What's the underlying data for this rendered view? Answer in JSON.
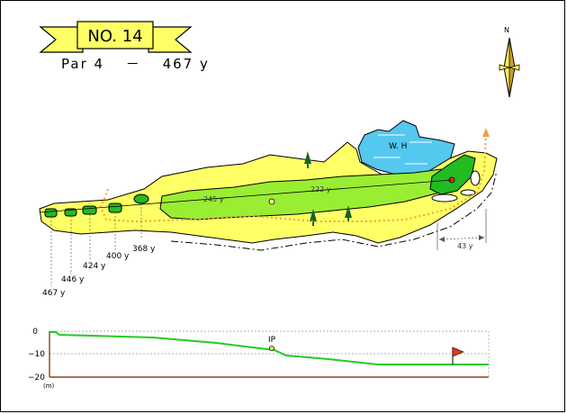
{
  "hole": {
    "label": "NO. 14",
    "par_line": "Par 4 　－　 467 y"
  },
  "compass": {
    "north": "N"
  },
  "hazard": {
    "water_label": "W. H"
  },
  "yardage_markers": [
    "467 y",
    "446 y",
    "424 y",
    "400 y",
    "368 y"
  ],
  "fairway_distances": {
    "first": "245 y",
    "second": "222 y"
  },
  "green_depth": "43 y",
  "profile": {
    "y_ticks": [
      "0",
      "−10",
      "−20"
    ],
    "unit": "(m)",
    "ip_label": "IP"
  },
  "colors": {
    "banner": "#ffff66",
    "rough": "#ffff66",
    "fairway": "#99ee33",
    "green": "#22bb22",
    "water": "#55c8f0",
    "bunker": "#ffffff",
    "path": "#f0a040",
    "profile_line": "#22cc22",
    "flag": "#ee3311"
  }
}
